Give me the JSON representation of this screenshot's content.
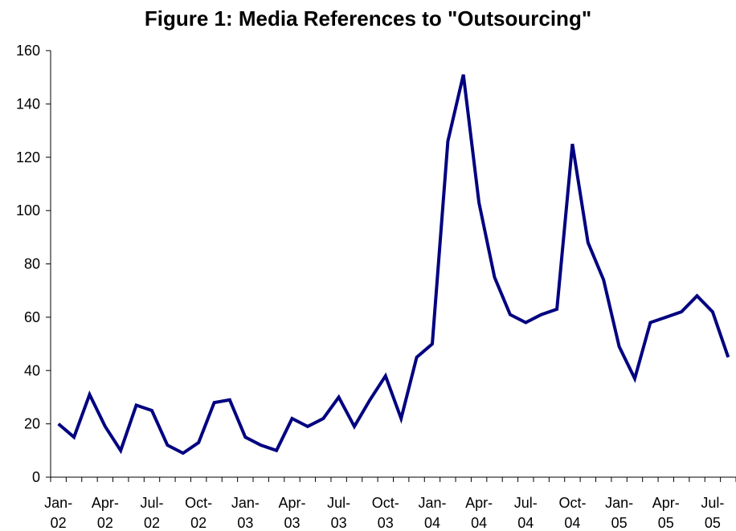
{
  "chart_data": {
    "type": "line",
    "title": "Figure 1: Media References to \"Outsourcing\"",
    "xlabel": "",
    "ylabel": "",
    "ylim": [
      0,
      160
    ],
    "yticks": [
      0,
      20,
      40,
      60,
      80,
      100,
      120,
      140,
      160
    ],
    "x": [
      "2002-01",
      "2002-02",
      "2002-03",
      "2002-04",
      "2002-05",
      "2002-06",
      "2002-07",
      "2002-08",
      "2002-09",
      "2002-10",
      "2002-11",
      "2002-12",
      "2003-01",
      "2003-02",
      "2003-03",
      "2003-04",
      "2003-05",
      "2003-06",
      "2003-07",
      "2003-08",
      "2003-09",
      "2003-10",
      "2003-11",
      "2003-12",
      "2004-01",
      "2004-02",
      "2004-03",
      "2004-04",
      "2004-05",
      "2004-06",
      "2004-07",
      "2004-08",
      "2004-09",
      "2004-10",
      "2004-11",
      "2004-12",
      "2005-01",
      "2005-02",
      "2005-03",
      "2005-04",
      "2005-05",
      "2005-06",
      "2005-07",
      "2005-08"
    ],
    "series": [
      {
        "values": [
          20,
          15,
          31,
          19,
          10,
          27,
          25,
          12,
          9,
          13,
          28,
          29,
          15,
          12,
          10,
          22,
          19,
          22,
          30,
          19,
          29,
          38,
          22,
          45,
          50,
          126,
          151,
          103,
          75,
          61,
          58,
          61,
          63,
          125,
          88,
          74,
          49,
          37,
          58,
          60,
          62,
          68,
          62,
          45
        ],
        "color": "#000080"
      }
    ],
    "tick_labels": [
      {
        "month": "Jan-",
        "year": "02"
      },
      {
        "month": "Apr-",
        "year": "02"
      },
      {
        "month": "Jul-",
        "year": "02"
      },
      {
        "month": "Oct-",
        "year": "02"
      },
      {
        "month": "Jan-",
        "year": "03"
      },
      {
        "month": "Apr-",
        "year": "03"
      },
      {
        "month": "Jul-",
        "year": "03"
      },
      {
        "month": "Oct-",
        "year": "03"
      },
      {
        "month": "Jan-",
        "year": "04"
      },
      {
        "month": "Apr-",
        "year": "04"
      },
      {
        "month": "Jul-",
        "year": "04"
      },
      {
        "month": "Oct-",
        "year": "04"
      },
      {
        "month": "Jan-",
        "year": "05"
      },
      {
        "month": "Apr-",
        "year": "05"
      },
      {
        "month": "Jul-",
        "year": "05"
      }
    ],
    "grid": false,
    "legend": "none"
  }
}
